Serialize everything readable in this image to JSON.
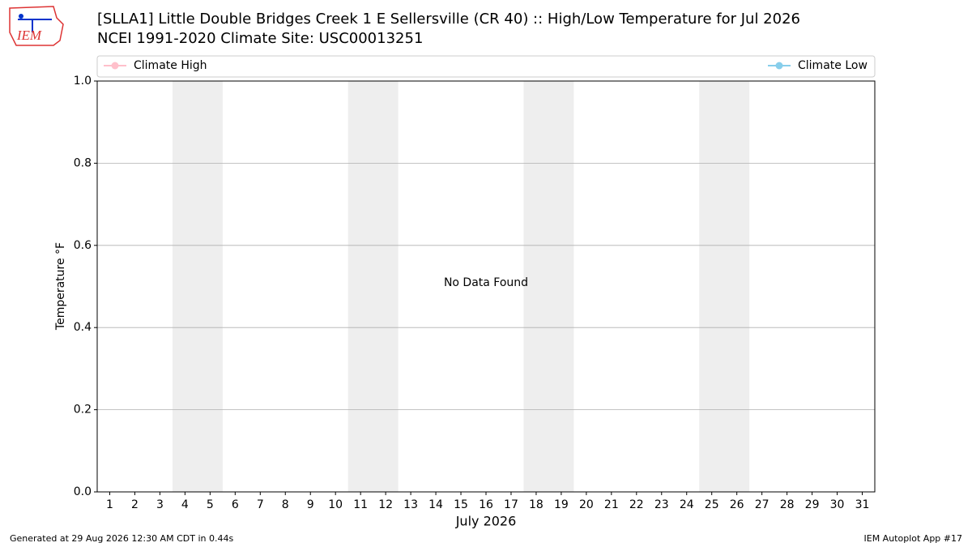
{
  "logo": "IEM",
  "chart_data": {
    "type": "line",
    "title": "[SLLA1] Little Double Bridges Creek 1 E Sellersville (CR 40) :: High/Low Temperature for Jul 2026",
    "subtitle": "NCEI 1991-2020 Climate Site: USC00013251",
    "xlabel": "July 2026",
    "ylabel": "Temperature °F",
    "annotation": "No Data Found",
    "series": [
      {
        "name": "Climate High",
        "color": "#ffc0cb",
        "values": []
      },
      {
        "name": "Climate Low",
        "color": "#87ceeb",
        "values": []
      }
    ],
    "xlim": [
      0.5,
      31.5
    ],
    "xticks": [
      1,
      2,
      3,
      4,
      5,
      6,
      7,
      8,
      9,
      10,
      11,
      12,
      13,
      14,
      15,
      16,
      17,
      18,
      19,
      20,
      21,
      22,
      23,
      24,
      25,
      26,
      27,
      28,
      29,
      30,
      31
    ],
    "ylim": [
      0,
      1
    ],
    "yticks": [
      {
        "value": 0,
        "label": "0.0"
      },
      0.2,
      0.4,
      0.6,
      0.8,
      {
        "value": 1,
        "label": "1.0"
      }
    ],
    "shaded_ranges": [
      [
        3.5,
        5.5
      ],
      [
        10.5,
        12.5
      ],
      [
        17.5,
        19.5
      ],
      [
        24.5,
        26.5
      ]
    ],
    "shade_color": "#eeeeee",
    "grid": true
  },
  "footer": {
    "left": "Generated at 29 Aug 2026 12:30 AM CDT in 0.44s",
    "right": "IEM Autoplot App #17"
  }
}
